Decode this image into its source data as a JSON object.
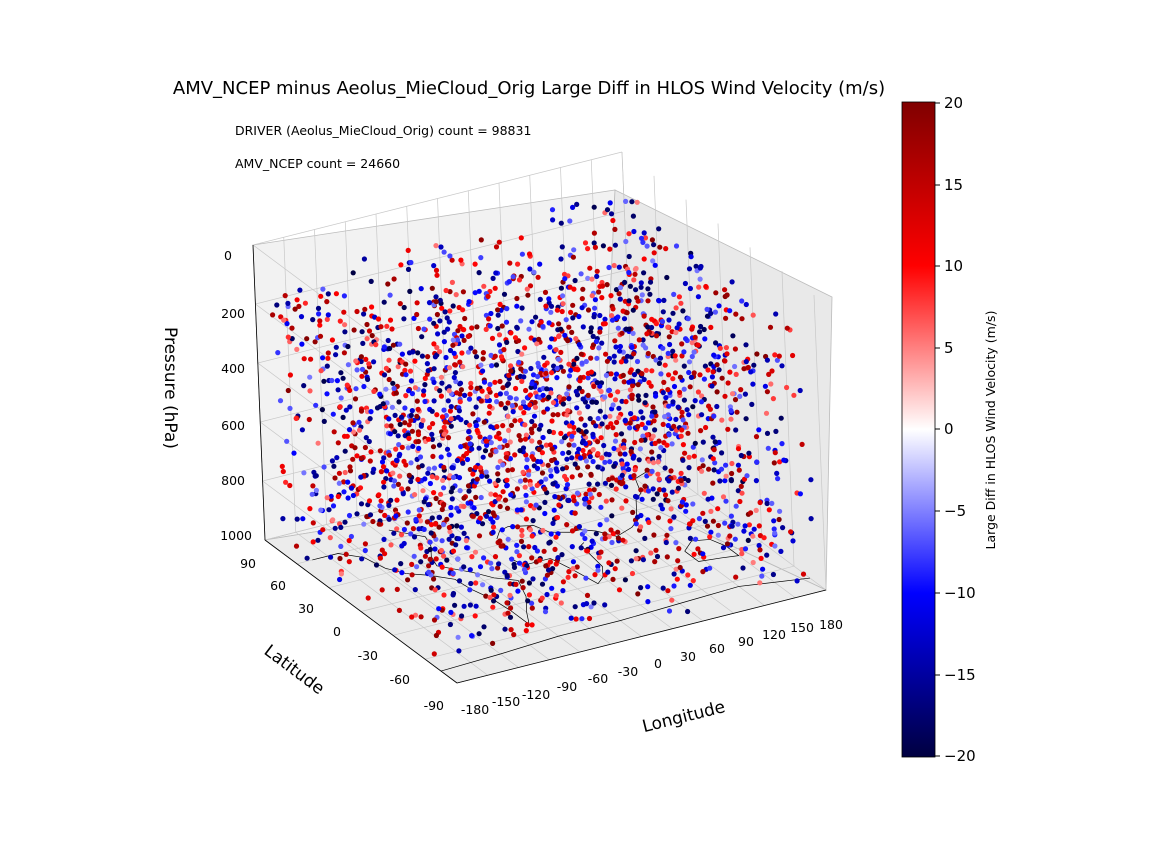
{
  "chart_data": {
    "type": "scatter",
    "projection": "3d",
    "title": "AMV_NCEP minus Aeolus_MieCloud_Orig Large Diff in HLOS Wind Velocity (m/s)",
    "annotations": [
      "DRIVER (Aeolus_MieCloud_Orig) count = 98831",
      "AMV_NCEP count = 24660"
    ],
    "xlabel": "Longitude",
    "ylabel": "Latitude",
    "zlabel": "Pressure (hPa)",
    "xlim": [
      -180,
      180
    ],
    "ylim": [
      -90,
      90
    ],
    "zlim": [
      1000,
      0
    ],
    "z_inverted": true,
    "xticks": [
      "-180",
      "-150",
      "-120",
      "-90",
      "-60",
      "-30",
      "0",
      "30",
      "60",
      "90",
      "120",
      "150",
      "180"
    ],
    "yticks": [
      "-90",
      "-60",
      "-30",
      "0",
      "30",
      "60",
      "90"
    ],
    "zticks": [
      "0",
      "200",
      "400",
      "600",
      "800",
      "1000"
    ],
    "grid": true,
    "coastlines": true,
    "colorbar": {
      "label": "Large Diff in HLOS Wind Velocity (m/s)",
      "range": [
        -20,
        20
      ],
      "colormap": "seismic",
      "ticks": [
        "20",
        "15",
        "10",
        "5",
        "0",
        "−5",
        "−10",
        "−15",
        "−20"
      ],
      "colors": [
        "#000040",
        "#0000ff",
        "#ffffff",
        "#ff0000",
        "#800000"
      ]
    },
    "points_note": "Dense cloud of colocation points spanning all longitudes, latitudes and pressures 100-1000 hPa; HLOS differences mostly near +/-5 to +/-20 m/s.",
    "sample_points": {
      "lon": [
        -170,
        -150,
        -120,
        -95,
        -60,
        -30,
        0,
        20,
        45,
        80,
        110,
        140,
        170,
        -10,
        60
      ],
      "lat": [
        55,
        -40,
        20,
        -65,
        70,
        5,
        -20,
        45,
        -50,
        30,
        -75,
        60,
        -10,
        80,
        -30
      ],
      "pressure": [
        300,
        450,
        600,
        750,
        250,
        900,
        500,
        350,
        650,
        800,
        400,
        200,
        550,
        700,
        950
      ],
      "hlos_diff": [
        12,
        -14,
        8,
        -18,
        15,
        -6,
        10,
        -12,
        17,
        -9,
        6,
        -16,
        13,
        -7,
        19
      ]
    }
  }
}
